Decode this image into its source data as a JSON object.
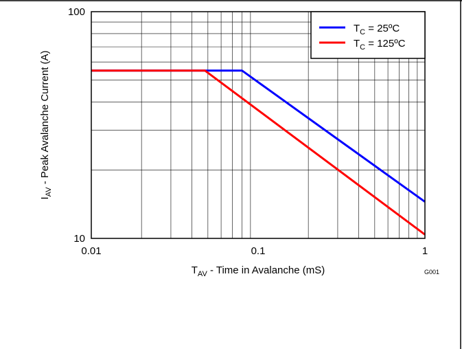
{
  "chart_data": {
    "type": "line",
    "xlabel": {
      "main": "T",
      "sub": "AV",
      "rest": " - Time in Avalanche (mS)"
    },
    "ylabel": {
      "main": "I",
      "sub": "AV",
      "rest": " - Peak Avalanche Current (A)"
    },
    "x_scale": "log",
    "y_scale": "log",
    "xlim": [
      0.01,
      1
    ],
    "ylim": [
      10,
      100
    ],
    "x_ticks": [
      {
        "value": 0.01,
        "label": "0.01"
      },
      {
        "value": 0.1,
        "label": "0.1"
      },
      {
        "value": 1,
        "label": "1"
      }
    ],
    "y_ticks": [
      {
        "value": 10,
        "label": "10"
      },
      {
        "value": 100,
        "label": "100"
      }
    ],
    "grid": true,
    "legend_position": "top-right",
    "figure_code": "G001",
    "series": [
      {
        "name": "TC = 25ºC",
        "legend": {
          "main": "T",
          "sub": "C",
          "rest": " = 25ºC"
        },
        "color": "#0000ff",
        "points": [
          [
            0.01,
            55
          ],
          [
            0.08,
            55
          ],
          [
            1,
            14.5
          ]
        ]
      },
      {
        "name": "TC = 125ºC",
        "legend": {
          "main": "T",
          "sub": "C",
          "rest": " = 125ºC"
        },
        "color": "#ff0000",
        "points": [
          [
            0.01,
            55
          ],
          [
            0.048,
            55
          ],
          [
            1,
            10.4
          ]
        ]
      }
    ]
  }
}
